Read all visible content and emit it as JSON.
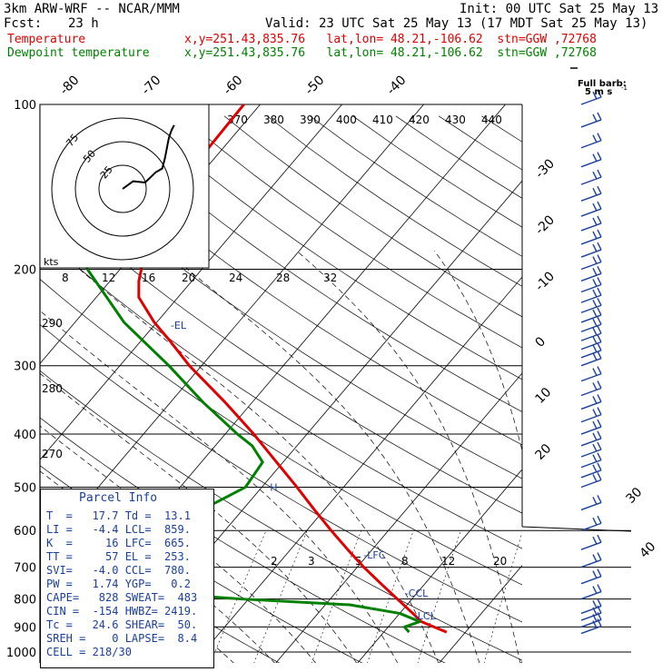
{
  "header": {
    "model_title": "3km ARW-WRF -- NCAR/MMM",
    "init": "Init: 00 UTC Sat 25 May 13",
    "fcst_label": "Fcst:",
    "fcst_value": "23 h",
    "valid": "Valid: 23 UTC Sat 25 May 13 (17 MDT Sat 25 May 13)",
    "temperature_label": "Temperature",
    "dewpoint_label": "Dewpoint temperature",
    "location_temperature": "x,y=251.43,835.76   lat,lon= 48.21,-106.62  stn=GGW ,72768",
    "location_dewpoint": "x,y=251.43,835.76   lat,lon= 48.21,-106.62  stn=GGW ,72768"
  },
  "barb_legend": {
    "line1": "Full barb:",
    "line2": "5 m s",
    "line3": "-1"
  },
  "colors": {
    "temperature": "#e00000",
    "dewpoint": "#008000",
    "parcel_text": "#1a3f9a",
    "barbs": "#1a3f9a"
  },
  "chart_data": {
    "type": "line",
    "pressure_axis_hPa": [
      100,
      200,
      300,
      400,
      500,
      600,
      700,
      800,
      900,
      1000
    ],
    "pressure_scale": "log",
    "isotherm_labels_C": [
      "-80",
      "-70",
      "-60",
      "-50",
      "-40",
      "-30",
      "-20",
      "-10",
      "0",
      "10",
      "20",
      "30",
      "40"
    ],
    "mixing_ratio_labels": [
      "8",
      "12",
      "16",
      "20",
      "24",
      "28",
      "32"
    ],
    "theta_e_labels": [
      "370",
      "380",
      "390",
      "400",
      "410",
      "420",
      "430",
      "440"
    ],
    "dry_adiabat_labels": [
      "290",
      "280",
      "270"
    ],
    "lower_mixing_ratio_labels": [
      "2",
      "3",
      "5",
      "8",
      "12",
      "20"
    ],
    "hodograph": {
      "rings_label": "kts",
      "ring_labels": [
        "75",
        "50",
        "25"
      ],
      "u_kts": [
        0,
        8,
        17,
        25,
        30,
        32,
        35,
        37,
        39
      ],
      "v_kts": [
        0,
        6,
        5,
        13,
        16,
        24,
        40,
        46,
        50
      ]
    },
    "series": [
      {
        "name": "Temperature",
        "p": [
          920,
          900,
          880,
          850,
          800,
          750,
          700,
          650,
          600,
          550,
          500,
          450,
          400,
          350,
          300,
          270,
          250,
          225,
          210,
          200,
          185,
          165,
          140,
          120,
          100
        ],
        "t": [
          17.7,
          15.6,
          13.5,
          11.6,
          8.2,
          4.6,
          0.8,
          -3.0,
          -7.0,
          -11.2,
          -15.7,
          -20.8,
          -26.5,
          -33.3,
          -41.5,
          -46.5,
          -50.3,
          -54.8,
          -56.5,
          -57.4,
          -59.5,
          -61.2,
          -61.5,
          -61.8,
          -62.0
        ]
      },
      {
        "name": "Dewpoint temperature",
        "p": [
          920,
          900,
          880,
          850,
          820,
          800,
          780,
          750,
          720,
          700,
          650,
          600,
          550,
          500,
          450,
          420,
          400,
          350,
          300,
          250,
          200,
          170,
          150,
          130,
          115,
          100
        ],
        "t": [
          13.1,
          12.0,
          13.3,
          10.0,
          3.0,
          -11.0,
          -22.0,
          -32.0,
          -36.5,
          -37.0,
          -33.0,
          -28.5,
          -25.0,
          -22.0,
          -22.5,
          -25.5,
          -28.5,
          -36.0,
          -44.0,
          -54.0,
          -64.0,
          -70.0,
          -74.0,
          -77.0,
          -78.0,
          -77.5
        ]
      }
    ],
    "wind_barb_levels_hPa": [
      100,
      110,
      120,
      130,
      140,
      150,
      160,
      170,
      180,
      190,
      200,
      210,
      220,
      230,
      240,
      250,
      260,
      270,
      280,
      290,
      300,
      320,
      340,
      360,
      380,
      400,
      420,
      440,
      460,
      480,
      500,
      550,
      600,
      650,
      700,
      750,
      800,
      850,
      875,
      900,
      925
    ],
    "annotations": [
      {
        "text": "-EL",
        "p": 253,
        "t": -48.0
      },
      {
        "text": "-LFC",
        "p": 665,
        "t": -0.5
      },
      {
        "text": "-CCL",
        "p": 780,
        "t": 8.5
      },
      {
        "text": "-LCL",
        "p": 859,
        "t": 12.0
      },
      {
        "text": "H",
        "p": 500,
        "t": -19.0
      }
    ]
  },
  "parcel_info": {
    "title": "Parcel Info",
    "rows": [
      "T  =   17.7 Td =  13.1",
      "LI =   -4.4 LCL=  859.",
      "K  =     16 LFC=  665.",
      "TT =     57 EL =  253.",
      "SVI=   -4.0 CCL=  780.",
      "PW =   1.74 YGP=   0.2",
      "CAPE=   828 SWEAT=  483",
      "CIN =  -154 HWBZ= 2419.",
      "Tc =   24.6 SHEAR=  50.",
      "SREH =    0 LAPSE=  8.4",
      "CELL = 218/30"
    ]
  }
}
